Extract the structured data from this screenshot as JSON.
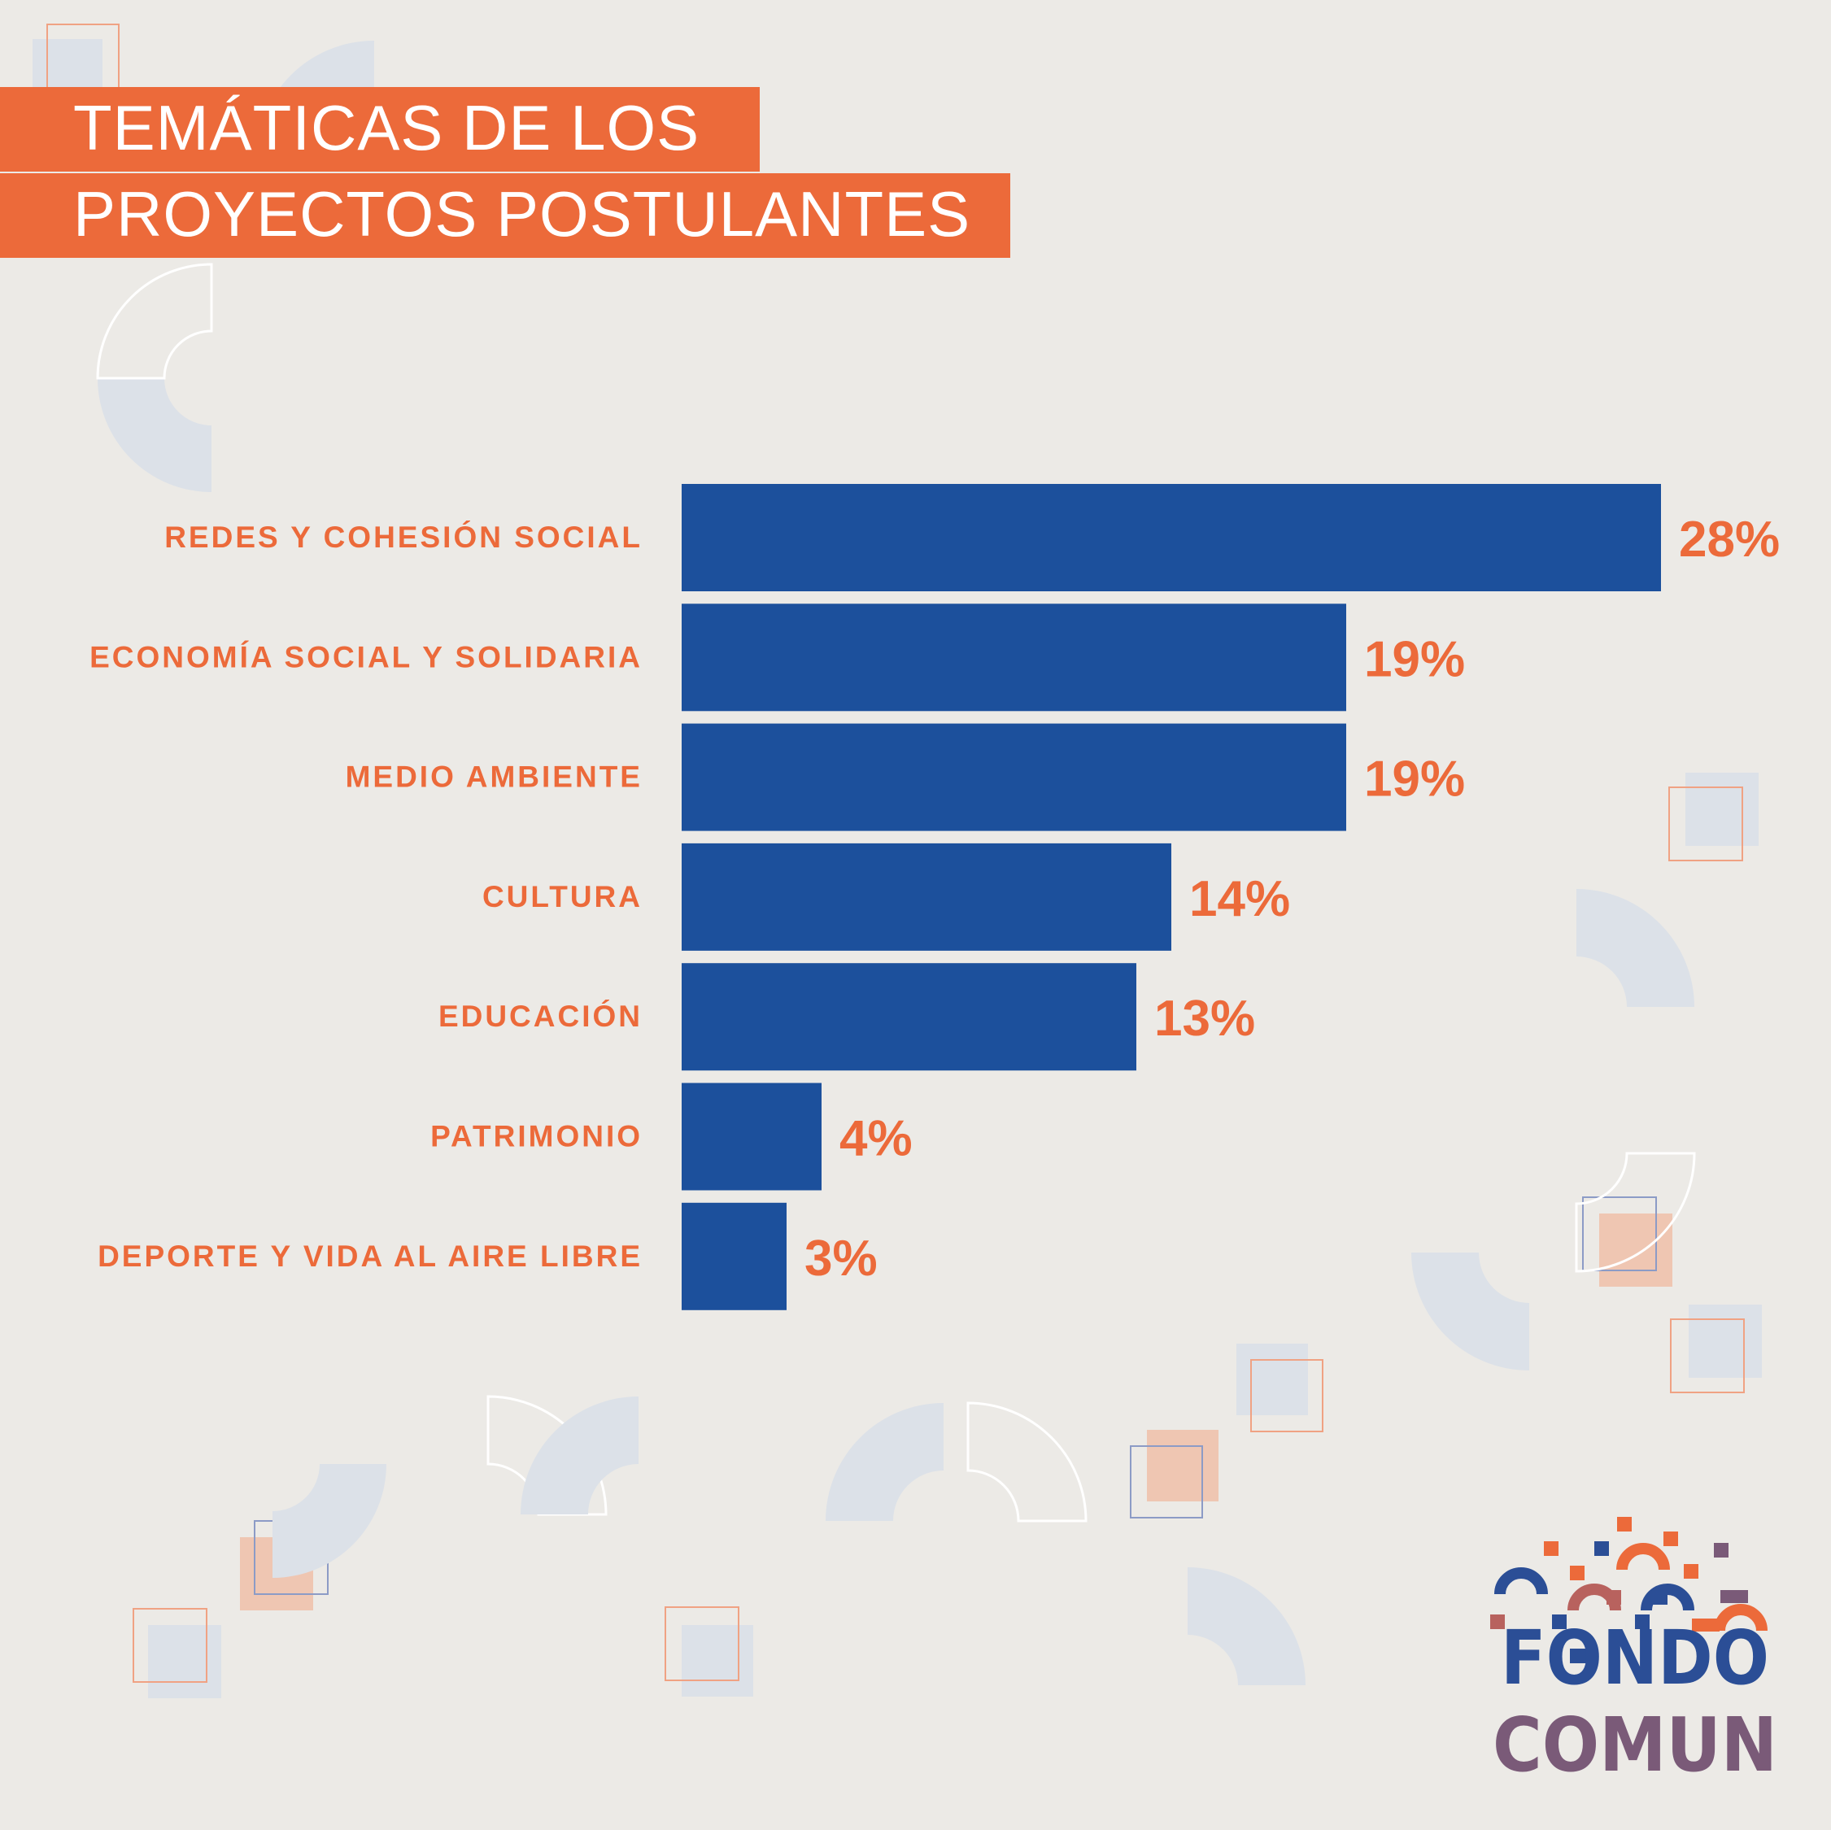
{
  "header": {
    "title_line_1": "TEMÁTICAS DE LOS",
    "title_line_2": "PROYECTOS POSTULANTES"
  },
  "colors": {
    "accent": "#EC6A3A",
    "bar": "#1C509C",
    "background": "#ECEAE6",
    "deco_blue": "#DCE1E8",
    "deco_peach": "#EFC6B2"
  },
  "chart_data": {
    "type": "bar",
    "orientation": "horizontal",
    "categories": [
      "REDES Y COHESIÓN SOCIAL",
      "ECONOMÍA SOCIAL Y SOLIDARIA",
      "MEDIO AMBIENTE",
      "CULTURA",
      "EDUCACIÓN",
      "PATRIMONIO",
      "DEPORTE Y VIDA AL AIRE LIBRE"
    ],
    "values": [
      28,
      19,
      19,
      14,
      13,
      4,
      3
    ],
    "value_labels": [
      "28%",
      "19%",
      "19%",
      "14%",
      "13%",
      "4%",
      "3%"
    ],
    "unit": "%",
    "grid": false,
    "legend": "none"
  },
  "logo": {
    "line_1": "FONDO",
    "line_2": "COMUN",
    "icon": "confetti-logo-icon"
  }
}
